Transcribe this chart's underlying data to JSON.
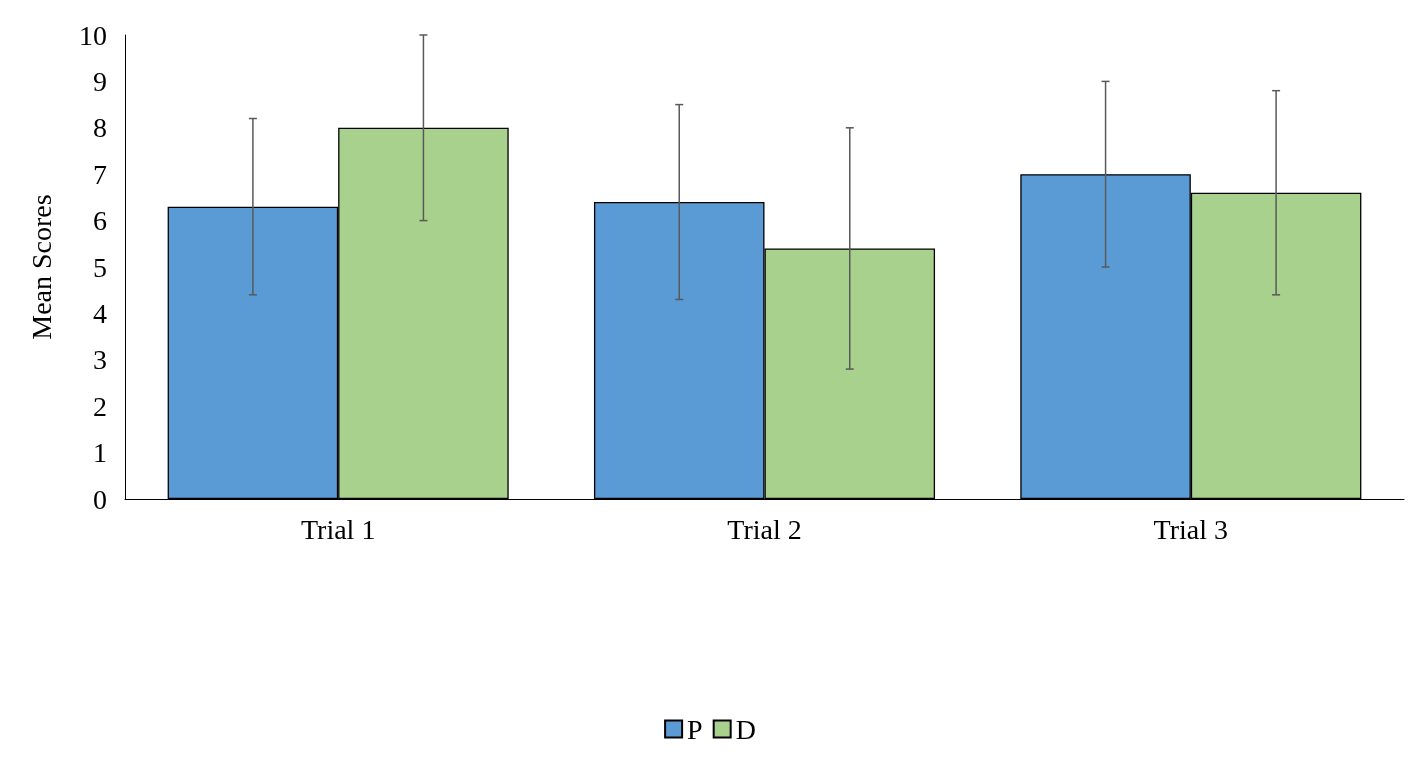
{
  "chart_data": {
    "type": "bar",
    "ylabel": "Mean Scores",
    "categories": [
      "Trial 1",
      "Trial 2",
      "Trial 3"
    ],
    "series": [
      {
        "name": "P",
        "color": "#5b9bd5",
        "values": [
          6.3,
          6.4,
          7.0
        ],
        "errors": [
          1.9,
          2.1,
          2.0
        ]
      },
      {
        "name": "D",
        "color": "#a9d18e",
        "values": [
          8.0,
          5.4,
          6.6
        ],
        "errors": [
          2.0,
          2.6,
          2.2
        ]
      }
    ],
    "ylim": [
      0,
      10
    ],
    "yticks": [
      0,
      1,
      2,
      3,
      4,
      5,
      6,
      7,
      8,
      9,
      10
    ],
    "grid": false,
    "legend": "bottom"
  }
}
